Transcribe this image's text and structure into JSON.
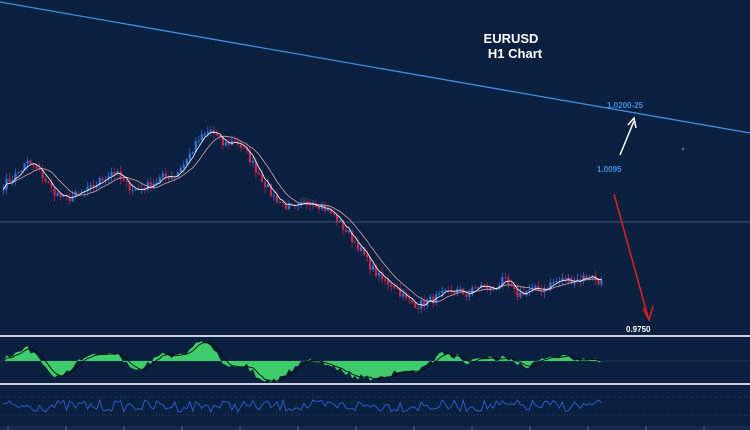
{
  "chart": {
    "symbol": "EURUSD",
    "timeframe_label": "H1 Chart",
    "colors": {
      "background": "#0b1f3e",
      "trendline": "#3d8fe6",
      "bull_candle": "#3a6fd8",
      "bear_candle": "#c0284e",
      "ma_fast": "#ffffff",
      "ma_slow": "#d9a0b0",
      "oscillator_fill": "#3ecb6a",
      "oscillator_line": "#0a0a0a",
      "lower_indicator": "#2f5fd6",
      "level_label_blue": "#3d8fe6",
      "level_label_white": "#ffffff",
      "arrow_up": "#ffffff",
      "arrow_down": "#e02020",
      "separator": "#c8d0dc"
    },
    "annotations": {
      "resistance_label": "1.0200-25",
      "pivot_label": "1.0095",
      "target_label": "0.9750"
    }
  },
  "chart_data": {
    "type": "candlestick",
    "title": "EURUSD",
    "subtitle": "H1 Chart",
    "y_levels": [
      1.02,
      1.0095,
      0.975
    ],
    "price_path": [
      1.004,
      1.006,
      1.0085,
      1.0065,
      1.003,
      1.001,
      1.002,
      1.003,
      1.005,
      1.007,
      1.004,
      1.003,
      1.004,
      1.0055,
      1.006,
      1.009,
      1.013,
      1.015,
      1.012,
      1.013,
      1.01,
      1.006,
      1.002,
      1.0,
      0.999,
      1.001,
      1.0,
      0.998,
      0.995,
      0.992,
      0.988,
      0.985,
      0.984,
      0.981,
      0.98,
      0.981,
      0.982,
      0.983,
      0.982,
      0.984,
      0.983,
      0.985,
      0.982,
      0.983,
      0.983,
      0.9845,
      0.985,
      0.985,
      0.986,
      0.9845
    ]
  }
}
